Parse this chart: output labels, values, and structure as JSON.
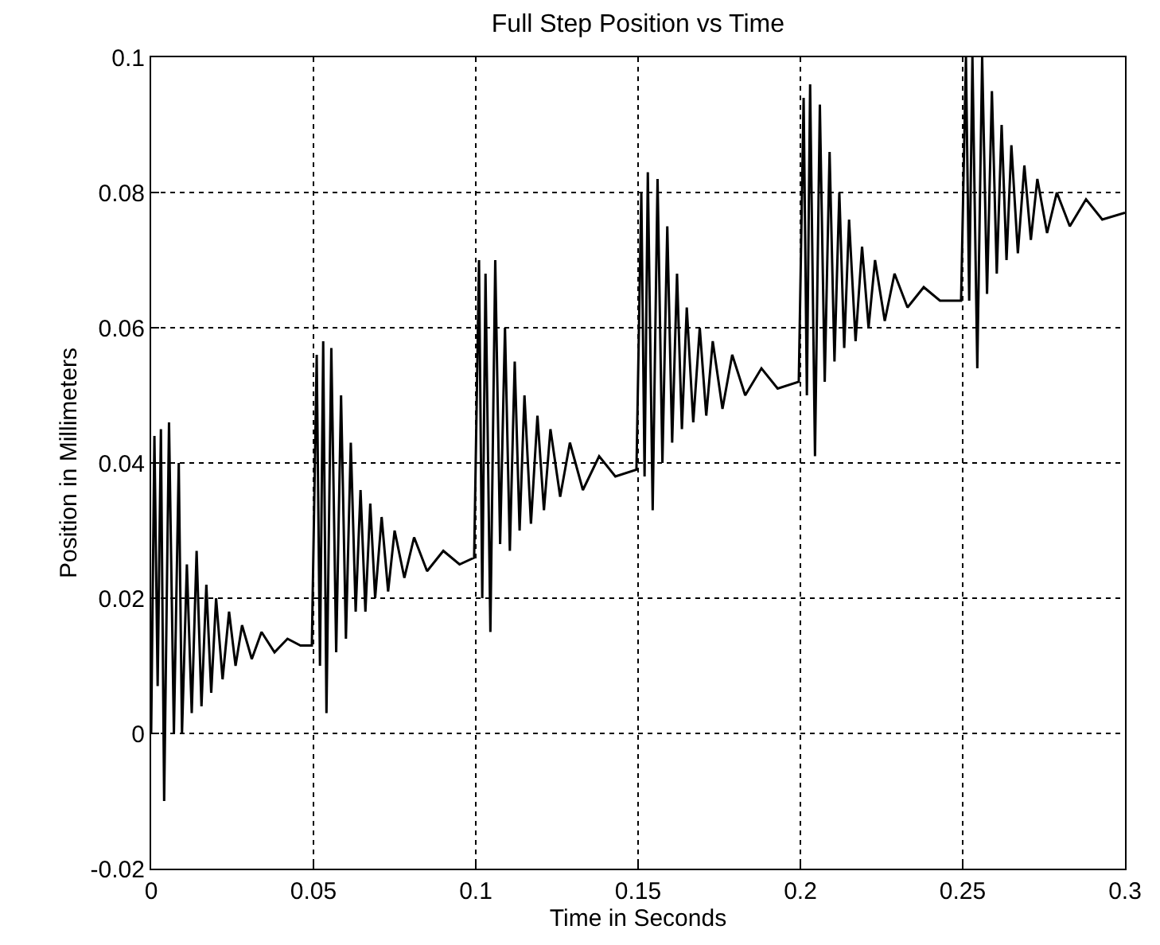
{
  "chart_data": {
    "type": "line",
    "title": "Full Step Position vs Time",
    "xlabel": "Time in Seconds",
    "ylabel": "Position in Millimeters",
    "xlim": [
      0,
      0.3
    ],
    "xticks": [
      0,
      0.05,
      0.1,
      0.15,
      0.2,
      0.25,
      0.3
    ],
    "ylim": [
      -0.02,
      0.1
    ],
    "yticks": [
      -0.02,
      0,
      0.02,
      0.04,
      0.06,
      0.08,
      0.1
    ],
    "grid": true,
    "marker": "none",
    "line_style": "solid",
    "series": [
      {
        "color": "#000000",
        "x": [
          0,
          0.001,
          0.002,
          0.003,
          0.004,
          0.0055,
          0.007,
          0.0085,
          0.0095,
          0.011,
          0.0125,
          0.014,
          0.0155,
          0.017,
          0.0185,
          0.02,
          0.022,
          0.024,
          0.026,
          0.028,
          0.031,
          0.034,
          0.038,
          0.042,
          0.046,
          0.0495,
          0.051,
          0.052,
          0.053,
          0.054,
          0.0555,
          0.057,
          0.0585,
          0.06,
          0.0615,
          0.063,
          0.0645,
          0.066,
          0.0675,
          0.069,
          0.071,
          0.073,
          0.075,
          0.078,
          0.081,
          0.085,
          0.09,
          0.095,
          0.0995,
          0.101,
          0.102,
          0.103,
          0.1045,
          0.106,
          0.1075,
          0.109,
          0.1105,
          0.112,
          0.1135,
          0.115,
          0.117,
          0.119,
          0.121,
          0.123,
          0.126,
          0.129,
          0.133,
          0.138,
          0.143,
          0.1495,
          0.151,
          0.152,
          0.153,
          0.1545,
          0.156,
          0.1575,
          0.159,
          0.1605,
          0.162,
          0.1635,
          0.165,
          0.167,
          0.169,
          0.171,
          0.173,
          0.176,
          0.179,
          0.183,
          0.188,
          0.193,
          0.1995,
          0.201,
          0.202,
          0.203,
          0.2045,
          0.206,
          0.2075,
          0.209,
          0.2105,
          0.212,
          0.2135,
          0.215,
          0.217,
          0.219,
          0.221,
          0.223,
          0.226,
          0.229,
          0.233,
          0.238,
          0.243,
          0.2495,
          0.251,
          0.252,
          0.253,
          0.2545,
          0.256,
          0.2575,
          0.259,
          0.2605,
          0.262,
          0.2635,
          0.265,
          0.267,
          0.269,
          0.271,
          0.273,
          0.276,
          0.279,
          0.283,
          0.288,
          0.293,
          0.3
        ],
        "values": [
          0,
          0.044,
          0.007,
          0.045,
          -0.01,
          0.046,
          0.0,
          0.04,
          0.0,
          0.025,
          0.003,
          0.027,
          0.004,
          0.022,
          0.006,
          0.02,
          0.008,
          0.018,
          0.01,
          0.016,
          0.011,
          0.015,
          0.012,
          0.014,
          0.013,
          0.013,
          0.056,
          0.01,
          0.058,
          0.003,
          0.057,
          0.012,
          0.05,
          0.014,
          0.043,
          0.018,
          0.036,
          0.018,
          0.034,
          0.02,
          0.032,
          0.021,
          0.03,
          0.023,
          0.029,
          0.024,
          0.027,
          0.025,
          0.026,
          0.07,
          0.02,
          0.068,
          0.015,
          0.07,
          0.028,
          0.06,
          0.027,
          0.055,
          0.03,
          0.05,
          0.031,
          0.047,
          0.033,
          0.045,
          0.035,
          0.043,
          0.036,
          0.041,
          0.038,
          0.039,
          0.08,
          0.038,
          0.083,
          0.033,
          0.082,
          0.04,
          0.075,
          0.043,
          0.068,
          0.045,
          0.063,
          0.046,
          0.06,
          0.047,
          0.058,
          0.048,
          0.056,
          0.05,
          0.054,
          0.051,
          0.052,
          0.094,
          0.05,
          0.096,
          0.041,
          0.093,
          0.052,
          0.086,
          0.055,
          0.08,
          0.057,
          0.076,
          0.058,
          0.072,
          0.06,
          0.07,
          0.061,
          0.068,
          0.063,
          0.066,
          0.064,
          0.064,
          0.1,
          0.064,
          0.1,
          0.054,
          0.1,
          0.065,
          0.095,
          0.068,
          0.09,
          0.07,
          0.087,
          0.071,
          0.084,
          0.073,
          0.082,
          0.074,
          0.08,
          0.075,
          0.079,
          0.076,
          0.077
        ]
      }
    ]
  }
}
